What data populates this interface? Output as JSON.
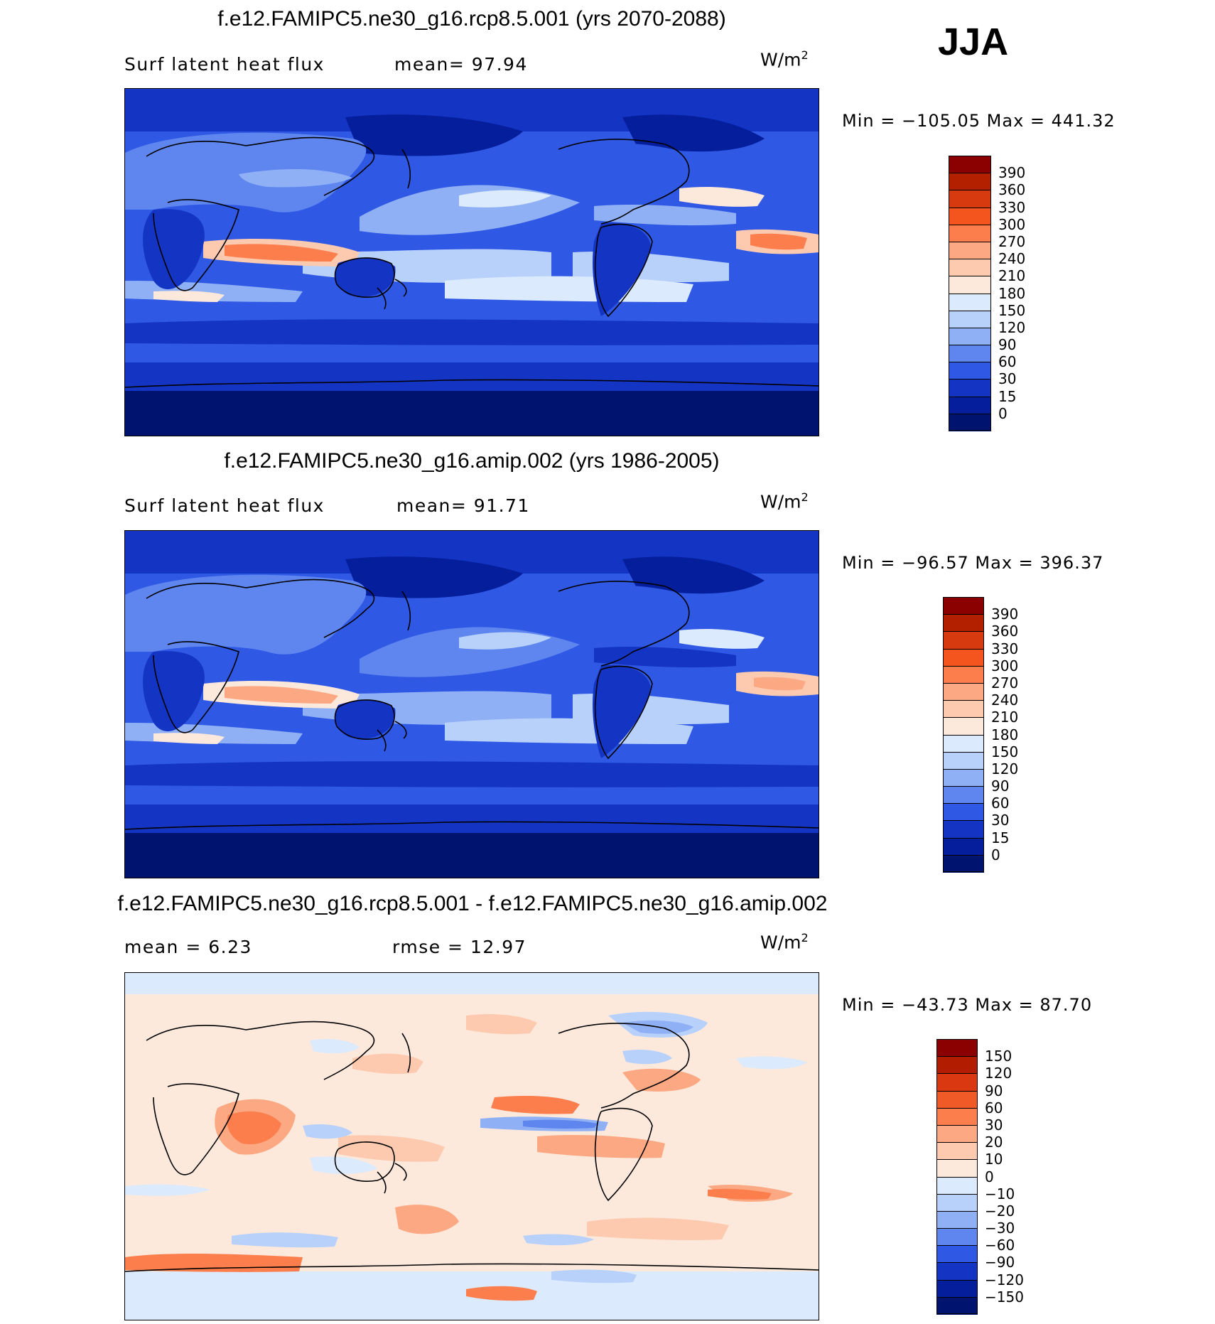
{
  "season": "JJA",
  "units_base": "W/m",
  "units_exp": "2",
  "panels": [
    {
      "title": "f.e12.FAMIPC5.ne30_g16.rcp8.5.001 (yrs 2070-2088)",
      "left_label": "Surf latent heat flux",
      "right_label": "mean=  97.94",
      "minmax": "Min = −105.05 Max = 441.32",
      "colorbar_labels": [
        "390",
        "360",
        "330",
        "300",
        "270",
        "240",
        "210",
        "180",
        "150",
        "120",
        "90",
        "60",
        "30",
        "15",
        "0"
      ]
    },
    {
      "title": "f.e12.FAMIPC5.ne30_g16.amip.002 (yrs 1986-2005)",
      "left_label": "Surf latent heat flux",
      "right_label": "mean=  91.71",
      "minmax": "Min = −96.57 Max = 396.37",
      "colorbar_labels": [
        "390",
        "360",
        "330",
        "300",
        "270",
        "240",
        "210",
        "180",
        "150",
        "120",
        "90",
        "60",
        "30",
        "15",
        "0"
      ]
    },
    {
      "title": "f.e12.FAMIPC5.ne30_g16.rcp8.5.001 - f.e12.FAMIPC5.ne30_g16.amip.002",
      "left_label": "mean =   6.23",
      "right_label": "rmse =  12.97",
      "minmax": "Min = −43.73 Max =  87.70",
      "colorbar_labels": [
        "150",
        "120",
        "90",
        "60",
        "30",
        "20",
        "10",
        "0",
        "−10",
        "−20",
        "−30",
        "−60",
        "−90",
        "−120",
        "−150"
      ]
    }
  ],
  "colors": {
    "abs_scale": [
      "#8b0000",
      "#b22000",
      "#d83a10",
      "#f4541e",
      "#fb7e4c",
      "#fca882",
      "#fdcab0",
      "#fde9dc",
      "#dbeafc",
      "#b8d1fb",
      "#8fb0f5",
      "#5e86ee",
      "#2f58e4",
      "#1434c4",
      "#041e9c",
      "#00136f"
    ],
    "diff_scale": [
      "#8b0000",
      "#b21c00",
      "#d93810",
      "#f05a26",
      "#fb7e4c",
      "#fca882",
      "#fdcab0",
      "#fde9dc",
      "#dbeafc",
      "#b8d1fb",
      "#8fb0f5",
      "#5e86ee",
      "#2f58e4",
      "#1434c4",
      "#041e9c",
      "#00136f"
    ],
    "coast": "#000000"
  }
}
